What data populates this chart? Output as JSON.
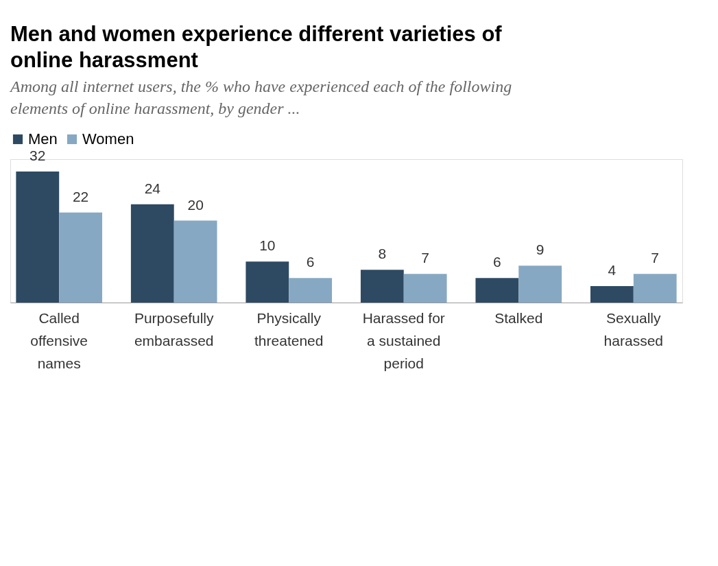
{
  "chart_data": {
    "type": "bar",
    "title": "Men and women experience different varieties of online harassment",
    "subtitle": "Among all internet users, the % who have experienced each of the following elements of online harassment, by gender ...",
    "categories": [
      "Called offensive names",
      "Purposefully embarassed",
      "Physically threatened",
      "Harassed for a sustained period",
      "Stalked",
      "Sexually harassed"
    ],
    "series": [
      {
        "name": "Men",
        "color": "#2e4a62",
        "values": [
          32,
          24,
          10,
          8,
          6,
          4
        ]
      },
      {
        "name": "Women",
        "color": "#87a8c2",
        "values": [
          22,
          20,
          6,
          7,
          9,
          7
        ]
      }
    ],
    "data_labels": true,
    "legend": "top",
    "grid": false
  }
}
